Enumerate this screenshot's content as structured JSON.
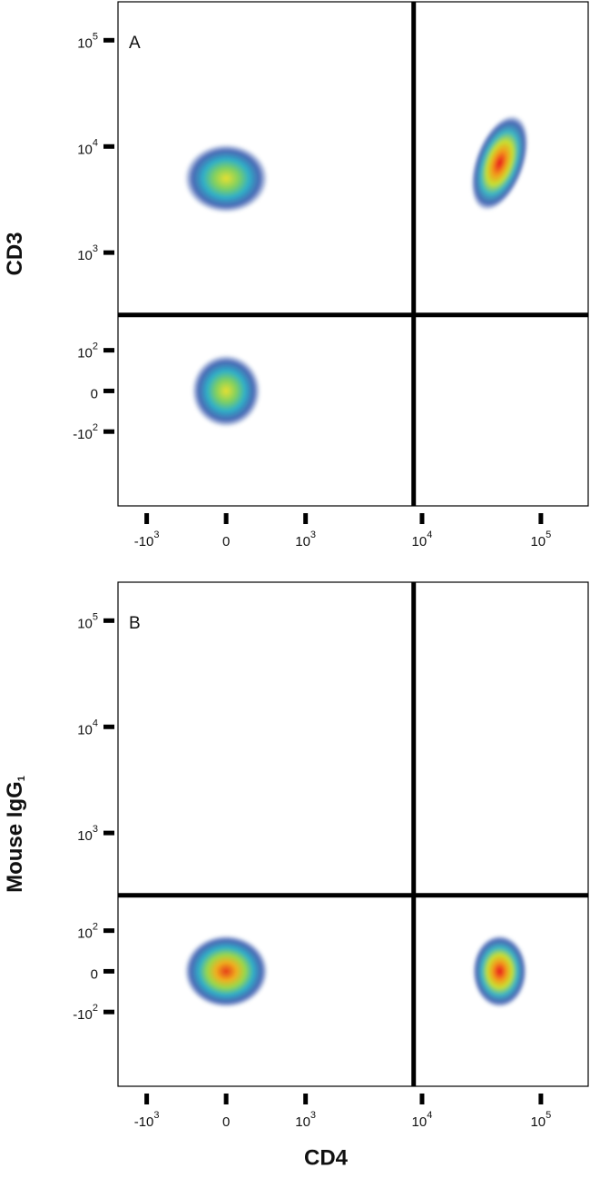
{
  "chart_data": [
    {
      "type": "scatter",
      "panel_label": "A",
      "ylabel": "CD3",
      "x": [
        0,
        0,
        45000
      ],
      "y": [
        0,
        5000,
        7000
      ],
      "xlim": [
        -1800,
        250000
      ],
      "ylim": [
        -600,
        230000
      ],
      "xticks": [
        {
          "value": -1000,
          "label": "-10",
          "sup": "3"
        },
        0,
        {
          "value": 1000,
          "label": "10",
          "sup": "3"
        },
        {
          "value": 10000,
          "label": "10",
          "sup": "4"
        },
        {
          "value": 100000,
          "label": "10",
          "sup": "5"
        }
      ],
      "yticks": [
        {
          "value": -100,
          "label": "-10",
          "sup": "2"
        },
        0,
        {
          "value": 100,
          "label": "10",
          "sup": "2"
        },
        {
          "value": 1000,
          "label": "10",
          "sup": "3"
        },
        {
          "value": 10000,
          "label": "10",
          "sup": "4"
        },
        {
          "value": 100000,
          "label": "10",
          "sup": "5"
        }
      ],
      "gate_x": 8500,
      "gate_y": 250
    },
    {
      "type": "scatter",
      "panel_label": "B",
      "ylabel": "Mouse IgG",
      "ylabel_sub": "1",
      "xlabel": "CD4",
      "x": [
        0,
        45000
      ],
      "y": [
        0,
        0
      ],
      "xlim": [
        -1800,
        250000
      ],
      "ylim": [
        -600,
        230000
      ],
      "xticks": [
        {
          "value": -1000,
          "label": "-10",
          "sup": "3"
        },
        0,
        {
          "value": 1000,
          "label": "10",
          "sup": "3"
        },
        {
          "value": 10000,
          "label": "10",
          "sup": "4"
        },
        {
          "value": 100000,
          "label": "10",
          "sup": "5"
        }
      ],
      "yticks": [
        {
          "value": -100,
          "label": "-10",
          "sup": "2"
        },
        0,
        {
          "value": 100,
          "label": "10",
          "sup": "2"
        },
        {
          "value": 1000,
          "label": "10",
          "sup": "3"
        },
        {
          "value": 10000,
          "label": "10",
          "sup": "4"
        },
        {
          "value": 100000,
          "label": "10",
          "sup": "5"
        }
      ],
      "gate_x": 8500,
      "gate_y": 250
    }
  ]
}
